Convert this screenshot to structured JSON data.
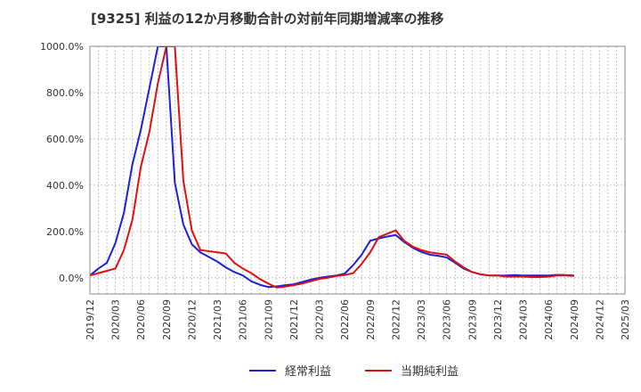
{
  "chart_data": {
    "type": "line",
    "title": "[9325]  利益の12か月移動合計の対前年同期増減率の推移",
    "xlabel": "",
    "ylabel": "",
    "ylim": [
      -70,
      1000
    ],
    "y_ticks": [
      0,
      200,
      400,
      600,
      800,
      1000
    ],
    "y_tick_labels": [
      "0.0%",
      "200.0%",
      "400.0%",
      "600.0%",
      "800.0%",
      "1000.0%"
    ],
    "x_tick_labels": [
      "2019/12",
      "2020/03",
      "2020/06",
      "2020/09",
      "2020/12",
      "2021/03",
      "2021/06",
      "2021/09",
      "2021/12",
      "2022/03",
      "2022/06",
      "2022/09",
      "2022/12",
      "2023/03",
      "2023/06",
      "2023/09",
      "2023/12",
      "2024/03",
      "2024/06",
      "2024/09",
      "2024/12",
      "2025/03"
    ],
    "grid": true,
    "legend_position": "bottom",
    "series": [
      {
        "name": "経常利益",
        "color": "#1f1fd6",
        "values": [
          10,
          40,
          65,
          150,
          280,
          490,
          640,
          820,
          1000,
          1000,
          410,
          230,
          145,
          110,
          90,
          70,
          45,
          25,
          10,
          -15,
          -30,
          -40,
          -37,
          -32,
          -28,
          -18,
          -8,
          0,
          5,
          10,
          18,
          55,
          100,
          160,
          170,
          178,
          185,
          155,
          130,
          112,
          100,
          95,
          88,
          65,
          40,
          25,
          15,
          10,
          10,
          10,
          12,
          10,
          10,
          10,
          10,
          13,
          12,
          10
        ]
      },
      {
        "name": "当期純利益",
        "color": "#dd1111",
        "values": [
          10,
          20,
          30,
          40,
          120,
          250,
          480,
          630,
          840,
          1000,
          1000,
          420,
          205,
          120,
          115,
          110,
          105,
          65,
          40,
          20,
          -5,
          -25,
          -42,
          -38,
          -32,
          -25,
          -15,
          -5,
          0,
          8,
          12,
          20,
          60,
          110,
          175,
          190,
          205,
          160,
          135,
          120,
          110,
          105,
          100,
          70,
          45,
          25,
          15,
          10,
          10,
          5,
          5,
          5,
          3,
          3,
          5,
          10,
          10,
          8
        ]
      }
    ]
  }
}
